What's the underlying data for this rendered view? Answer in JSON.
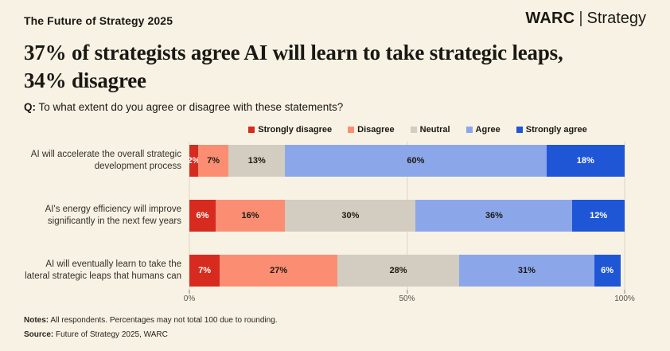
{
  "page": {
    "background": "#f8f2e4"
  },
  "header": {
    "kicker": "The Future of Strategy 2025",
    "brand": {
      "name": "WARC",
      "divider": "|",
      "sub": "Strategy"
    }
  },
  "title": {
    "line1": "37% of strategists agree AI will learn to take strategic leaps,",
    "line2": "34% disagree"
  },
  "question": {
    "prefix": "Q:",
    "text": "To what extent do you agree or disagree with these statements?"
  },
  "chart_data": {
    "type": "bar",
    "orientation": "horizontal-stacked",
    "categories": [
      "AI will accelerate the overall strategic development process",
      "AI's energy efficiency will improve significantly in the next few years",
      "AI will eventually learn to take the lateral strategic leaps that humans can"
    ],
    "series": [
      {
        "name": "Strongly disagree",
        "color": "#d62b1e",
        "text_color": "#ffffff",
        "values": [
          2,
          6,
          7
        ]
      },
      {
        "name": "Disagree",
        "color": "#fb8e72",
        "text_color": "#1a1a14",
        "values": [
          7,
          16,
          27
        ]
      },
      {
        "name": "Neutral",
        "color": "#d3ccc0",
        "text_color": "#1a1a14",
        "values": [
          13,
          30,
          28
        ]
      },
      {
        "name": "Agree",
        "color": "#8ca7e9",
        "text_color": "#1a1a14",
        "values": [
          60,
          36,
          31
        ]
      },
      {
        "name": "Strongly agree",
        "color": "#1f56d6",
        "text_color": "#ffffff",
        "values": [
          18,
          12,
          6
        ]
      }
    ],
    "x_axis": {
      "ticks": [
        "0%",
        "50%",
        "100%"
      ],
      "range": [
        0,
        100
      ]
    },
    "legend_position": "top",
    "grid": true,
    "value_suffix": "%"
  },
  "footer": {
    "notes_label": "Notes:",
    "notes_text": "All respondents. Percentages may not total 100 due to rounding.",
    "source_label": "Source:",
    "source_text": "Future of Strategy 2025, WARC"
  }
}
